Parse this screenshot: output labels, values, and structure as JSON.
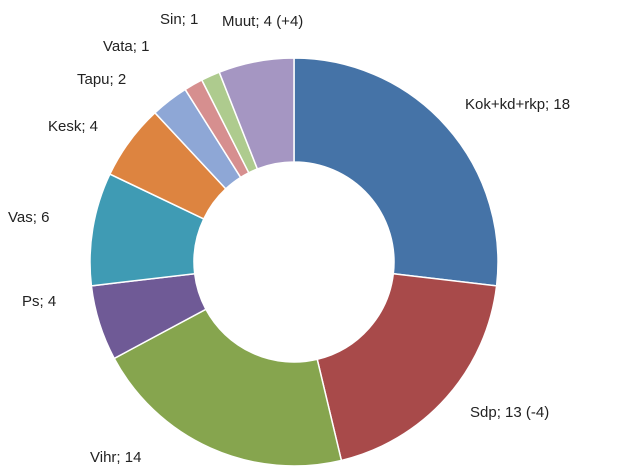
{
  "chart_data": {
    "type": "donut",
    "values": [
      18,
      13,
      14,
      4,
      6,
      4,
      2,
      1,
      1,
      4
    ],
    "value_labels": [
      "Kok+kd+rkp; 18",
      "Sdp; 13 (-4)",
      "Vihr; 14",
      "Ps; 4",
      "Vas; 6",
      "Kesk; 4",
      "Tapu; 2",
      "Vata; 1",
      "Sin; 1",
      "Muut; 4 (+4)"
    ],
    "colors": [
      "#4573a7",
      "#a84a4a",
      "#86a54e",
      "#6f5a96",
      "#3f9bb4",
      "#dd8440",
      "#8ea7d6",
      "#d68f8f",
      "#aecb8e",
      "#a596c2"
    ]
  }
}
